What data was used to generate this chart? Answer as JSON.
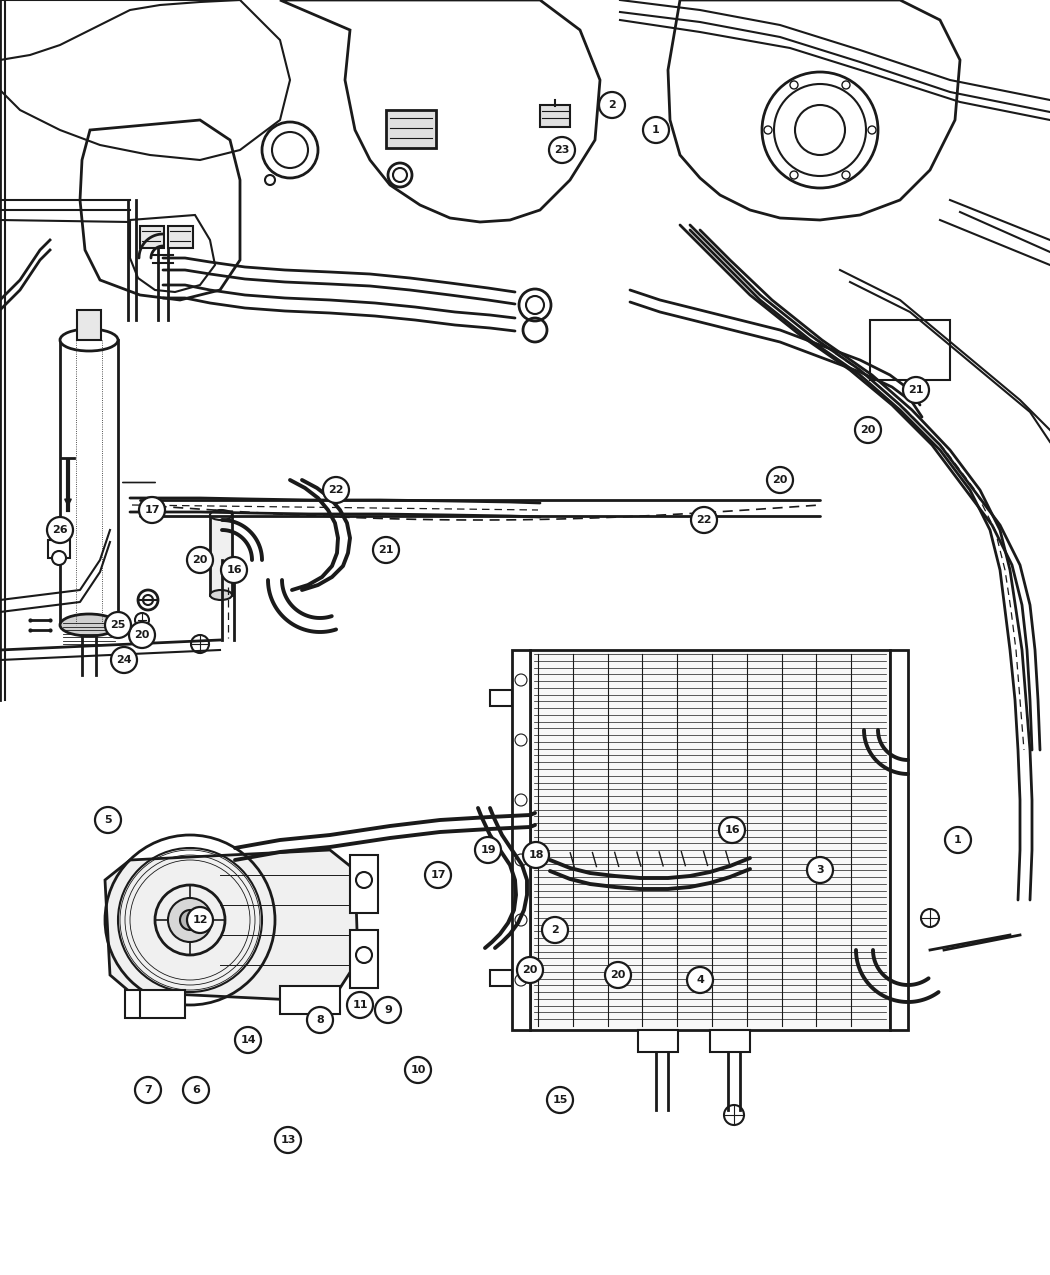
{
  "bg_color": "#ffffff",
  "line_color": "#1a1a1a",
  "figsize": [
    10.5,
    12.75
  ],
  "dpi": 100,
  "callouts_top": [
    [
      "1",
      958,
      840
    ],
    [
      "2",
      555,
      930
    ],
    [
      "3",
      820,
      870
    ],
    [
      "4",
      700,
      980
    ],
    [
      "5",
      108,
      820
    ],
    [
      "6",
      196,
      1090
    ],
    [
      "7",
      148,
      1090
    ],
    [
      "8",
      320,
      1020
    ],
    [
      "9",
      388,
      1010
    ],
    [
      "10",
      418,
      1070
    ],
    [
      "11",
      360,
      1005
    ],
    [
      "12",
      200,
      920
    ],
    [
      "13",
      288,
      1140
    ],
    [
      "14",
      248,
      1040
    ],
    [
      "15",
      560,
      1100
    ],
    [
      "16",
      732,
      830
    ],
    [
      "17",
      438,
      875
    ],
    [
      "18",
      536,
      855
    ],
    [
      "19",
      488,
      850
    ],
    [
      "20",
      530,
      970
    ],
    [
      "20",
      618,
      975
    ],
    [
      "20",
      142,
      635
    ],
    [
      "20",
      200,
      560
    ],
    [
      "20",
      780,
      480
    ],
    [
      "20",
      868,
      430
    ],
    [
      "21",
      386,
      550
    ],
    [
      "21",
      916,
      390
    ],
    [
      "22",
      336,
      490
    ],
    [
      "22",
      704,
      520
    ],
    [
      "23",
      562,
      150
    ],
    [
      "24",
      124,
      660
    ],
    [
      "25",
      118,
      625
    ],
    [
      "26",
      60,
      530
    ],
    [
      "16",
      234,
      570
    ],
    [
      "17",
      152,
      510
    ],
    [
      "1",
      656,
      130
    ],
    [
      "2",
      612,
      105
    ]
  ]
}
